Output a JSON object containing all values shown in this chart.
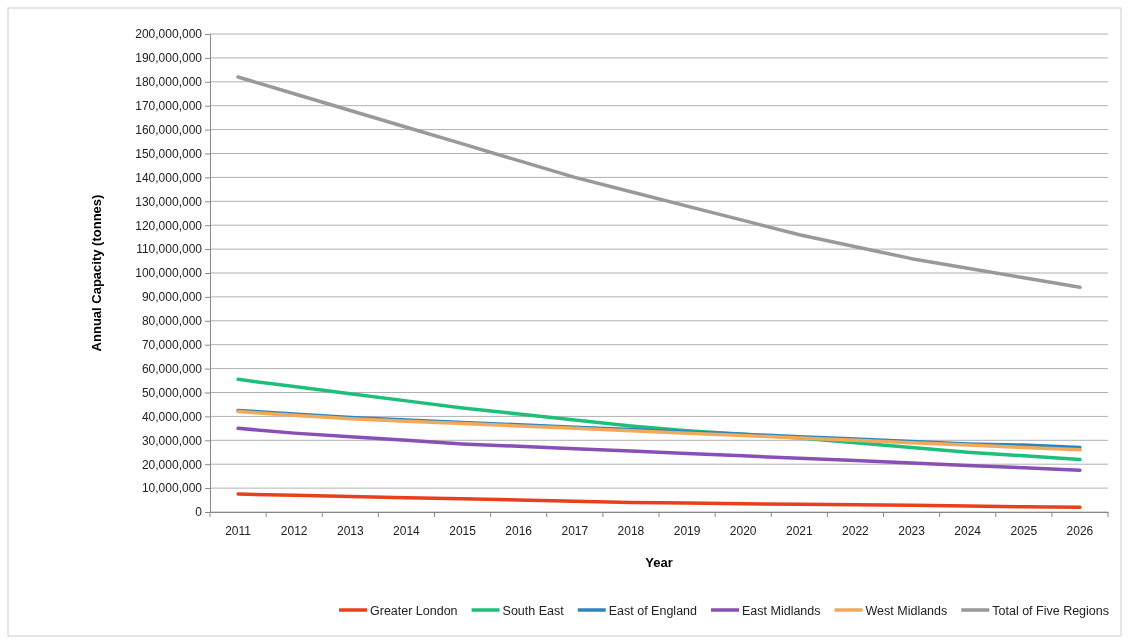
{
  "chart_data": {
    "type": "line",
    "xlabel": "Year",
    "ylabel": "Annual Capacity (tonnes)",
    "categories": [
      "2011",
      "2012",
      "2013",
      "2014",
      "2015",
      "2016",
      "2017",
      "2018",
      "2019",
      "2020",
      "2021",
      "2022",
      "2023",
      "2024",
      "2025",
      "2026"
    ],
    "ylim": [
      0,
      200000000
    ],
    "yticks": [
      {
        "value": 0,
        "label": "0"
      },
      {
        "value": 10000000,
        "label": "10,000,000"
      },
      {
        "value": 20000000,
        "label": "20,000,000"
      },
      {
        "value": 30000000,
        "label": "30,000,000"
      },
      {
        "value": 40000000,
        "label": "40,000,000"
      },
      {
        "value": 50000000,
        "label": "50,000,000"
      },
      {
        "value": 60000000,
        "label": "60,000,000"
      },
      {
        "value": 70000000,
        "label": "70,000,000"
      },
      {
        "value": 80000000,
        "label": "80,000,000"
      },
      {
        "value": 90000000,
        "label": "90,000,000"
      },
      {
        "value": 100000000,
        "label": "100,000,000"
      },
      {
        "value": 110000000,
        "label": "110,000,000"
      },
      {
        "value": 120000000,
        "label": "120,000,000"
      },
      {
        "value": 130000000,
        "label": "130,000,000"
      },
      {
        "value": 140000000,
        "label": "140,000,000"
      },
      {
        "value": 150000000,
        "label": "150,000,000"
      },
      {
        "value": 160000000,
        "label": "160,000,000"
      },
      {
        "value": 170000000,
        "label": "170,000,000"
      },
      {
        "value": 180000000,
        "label": "180,000,000"
      },
      {
        "value": 190000000,
        "label": "190,000,000"
      },
      {
        "value": 200000000,
        "label": "200,000,000"
      }
    ],
    "grid": "y",
    "legend": "bottom",
    "marker": "none",
    "line_style": "solid",
    "series": [
      {
        "name": "Greater London",
        "color": "#e8401c",
        "values": [
          7500000,
          7000000,
          6500000,
          6000000,
          5500000,
          5000000,
          4500000,
          4000000,
          3800000,
          3500000,
          3200000,
          3000000,
          2800000,
          2500000,
          2200000,
          2000000
        ]
      },
      {
        "name": "South East",
        "color": "#1fbf7a",
        "values": [
          55500000,
          52500000,
          49500000,
          46500000,
          43500000,
          41000000,
          38500000,
          36000000,
          34000000,
          32500000,
          31000000,
          29000000,
          27000000,
          25000000,
          23500000,
          22000000
        ]
      },
      {
        "name": "East of England",
        "color": "#2a86c0",
        "values": [
          42500000,
          41000000,
          39500000,
          38500000,
          37500000,
          36500000,
          35500000,
          34500000,
          33500000,
          32500000,
          31500000,
          30500000,
          29500000,
          28500000,
          28000000,
          27000000
        ]
      },
      {
        "name": "East Midlands",
        "color": "#8a4fb5",
        "values": [
          35000000,
          33000000,
          31500000,
          30000000,
          28500000,
          27500000,
          26500000,
          25500000,
          24500000,
          23500000,
          22500000,
          21500000,
          20500000,
          19500000,
          18500000,
          17500000
        ]
      },
      {
        "name": "West Midlands",
        "color": "#f2a95a",
        "values": [
          42000000,
          40500000,
          39000000,
          38000000,
          37000000,
          36000000,
          35000000,
          34000000,
          33000000,
          32000000,
          31000000,
          30000000,
          29000000,
          28000000,
          27000000,
          26000000
        ]
      },
      {
        "name": "Total of Five Regions",
        "color": "#999999",
        "values": [
          182000000,
          175000000,
          168000000,
          161000000,
          154000000,
          147000000,
          140000000,
          134000000,
          128000000,
          122000000,
          116000000,
          111000000,
          106000000,
          102000000,
          98000000,
          94000000
        ]
      }
    ]
  }
}
